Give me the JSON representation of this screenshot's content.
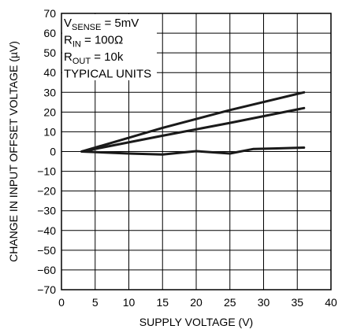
{
  "chart_data": {
    "type": "line",
    "title": "",
    "xlabel": "SUPPLY VOLTAGE (V)",
    "ylabel": "CHANGE IN INPUT OFFSET VOLTAGE (µV)",
    "xlim": [
      0,
      40
    ],
    "ylim": [
      -70,
      70
    ],
    "x_ticks": [
      0,
      5,
      10,
      15,
      20,
      25,
      30,
      35,
      40
    ],
    "y_ticks": [
      70,
      60,
      50,
      40,
      30,
      20,
      10,
      0,
      -10,
      -20,
      -30,
      -40,
      -50,
      -60,
      -70
    ],
    "x_tick_labels": [
      "0",
      "5",
      "10",
      "15",
      "20",
      "25",
      "30",
      "35",
      "40"
    ],
    "y_tick_labels": [
      "70",
      "60",
      "50",
      "40",
      "30",
      "20",
      "10",
      "0",
      "−10",
      "−20",
      "−30",
      "−40",
      "−50",
      "−60",
      "−70"
    ],
    "grid": true,
    "line_color": "#1a1a1a",
    "annotation": [
      {
        "main": "V",
        "sub": "SENSE",
        "rest": " = 5mV"
      },
      {
        "main": "R",
        "sub": "IN",
        "rest": " = 100Ω"
      },
      {
        "main": "R",
        "sub": "OUT",
        "rest": " = 10k"
      },
      {
        "main": "TYPICAL UNITS",
        "sub": "",
        "rest": ""
      }
    ],
    "series": [
      {
        "x": [
          3,
          15,
          25,
          36
        ],
        "y": [
          0,
          12,
          21,
          30
        ]
      },
      {
        "x": [
          3,
          15,
          25,
          36
        ],
        "y": [
          0,
          8,
          14.5,
          22
        ]
      },
      {
        "x": [
          3,
          10,
          15,
          20,
          25,
          28.5,
          32,
          36
        ],
        "y": [
          0,
          -1,
          -1.5,
          0.2,
          -1,
          1.3,
          1.6,
          2
        ]
      }
    ]
  }
}
